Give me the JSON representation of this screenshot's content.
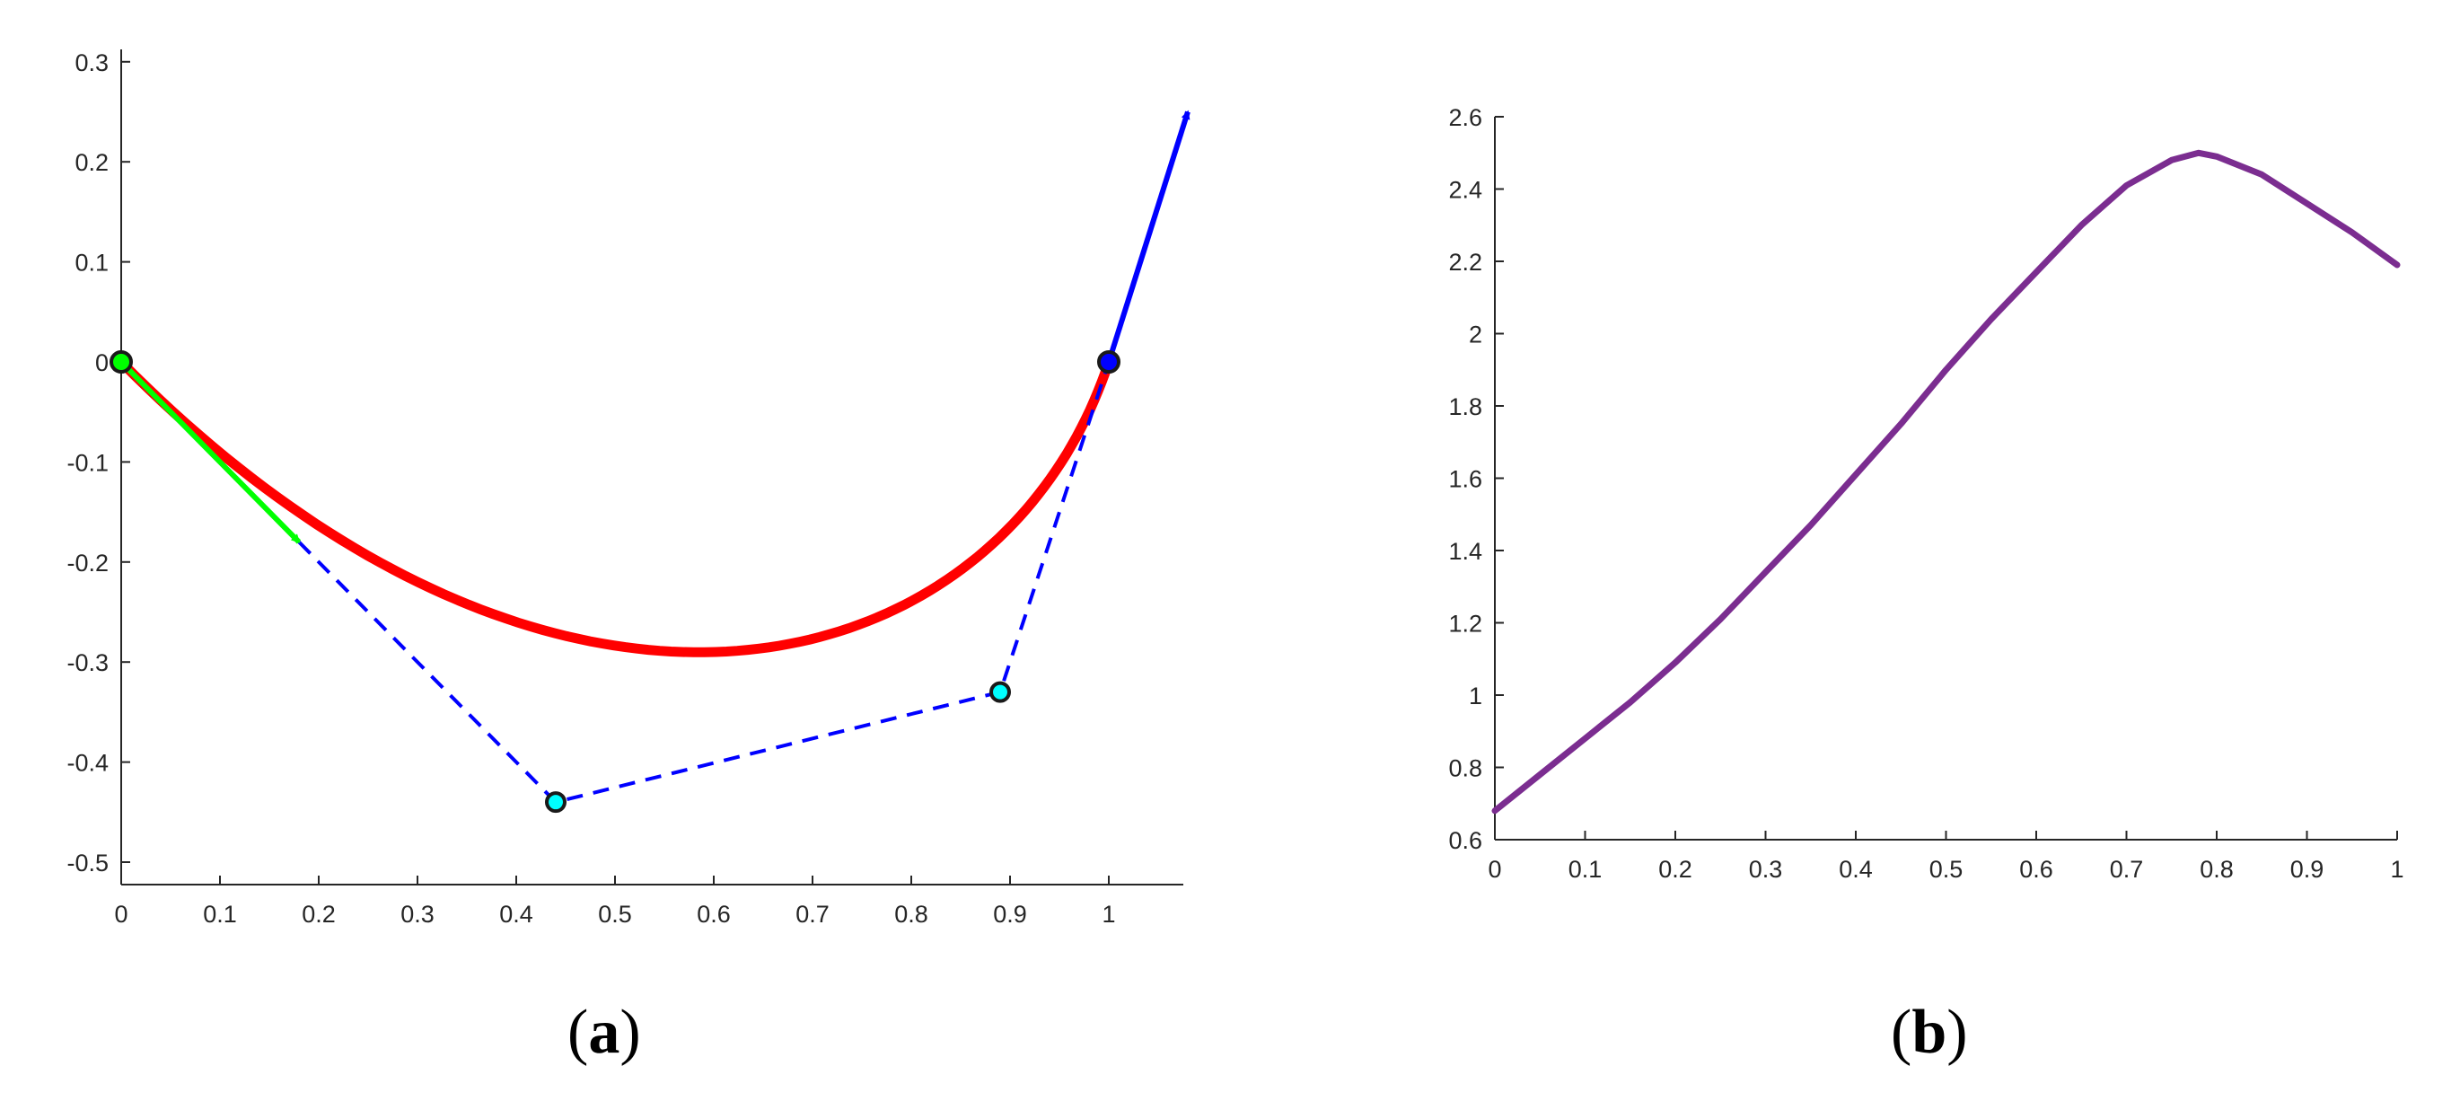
{
  "panels": [
    {
      "label_open": "(",
      "label_letter": "a",
      "label_close": ")"
    },
    {
      "label_open": "(",
      "label_letter": "b",
      "label_close": ")"
    }
  ],
  "chart_data": [
    {
      "type": "line",
      "title": "",
      "xlabel": "",
      "ylabel": "",
      "xlim": [
        0,
        1.08
      ],
      "ylim": [
        -0.52,
        0.32
      ],
      "xticks": [
        0,
        0.1,
        0.2,
        0.3,
        0.4,
        0.5,
        0.6,
        0.7,
        0.8,
        0.9,
        1
      ],
      "yticks": [
        0.3,
        0.2,
        0.1,
        0,
        -0.1,
        -0.2,
        -0.3,
        -0.4,
        -0.5
      ],
      "xtick_labels": [
        "0",
        "0.1",
        "0.2",
        "0.3",
        "0.4",
        "0.5",
        "0.6",
        "0.7",
        "0.8",
        "0.9",
        "1"
      ],
      "ytick_labels": [
        "0.3",
        "0.2",
        "0.1",
        "0",
        "-0.1",
        "-0.2",
        "-0.3",
        "-0.4",
        "-0.5"
      ],
      "grid": false,
      "series": [
        {
          "kind": "bezier-curve",
          "color": "#ff0000",
          "control_points": [
            [
              0,
              0
            ],
            [
              0.44,
              -0.44
            ],
            [
              0.89,
              -0.33
            ],
            [
              1,
              0
            ]
          ]
        },
        {
          "kind": "control-polygon",
          "color": "#0000ff",
          "dashed": true,
          "points": [
            [
              0.18,
              -0.18
            ],
            [
              0.44,
              -0.44
            ],
            [
              0.89,
              -0.33
            ],
            [
              1,
              0
            ]
          ]
        },
        {
          "kind": "tangent-arrow",
          "color": "#00ff00",
          "from": [
            0,
            0
          ],
          "to": [
            0.18,
            -0.18
          ]
        },
        {
          "kind": "tangent-arrow",
          "color": "#0000ff",
          "from": [
            1,
            0
          ],
          "to": [
            1.08,
            0.25
          ]
        },
        {
          "kind": "endpoint",
          "color": "#00ff00",
          "x": 0,
          "y": 0
        },
        {
          "kind": "endpoint",
          "color": "#0000ff",
          "x": 1,
          "y": 0
        },
        {
          "kind": "control-point",
          "color": "#00ffff",
          "x": 0.44,
          "y": -0.44
        },
        {
          "kind": "control-point",
          "color": "#00ffff",
          "x": 0.89,
          "y": -0.33
        }
      ]
    },
    {
      "type": "line",
      "title": "",
      "xlabel": "",
      "ylabel": "",
      "xlim": [
        0,
        1
      ],
      "ylim": [
        0.6,
        2.6
      ],
      "xticks": [
        0,
        0.1,
        0.2,
        0.3,
        0.4,
        0.5,
        0.6,
        0.7,
        0.8,
        0.9,
        1
      ],
      "yticks": [
        0.6,
        0.8,
        1,
        1.2,
        1.4,
        1.6,
        1.8,
        2,
        2.2,
        2.4,
        2.6
      ],
      "xtick_labels": [
        "0",
        "0.1",
        "0.2",
        "0.3",
        "0.4",
        "0.5",
        "0.6",
        "0.7",
        "0.8",
        "0.9",
        "1"
      ],
      "ytick_labels": [
        "0.6",
        "0.8",
        "1",
        "1.2",
        "1.4",
        "1.6",
        "1.8",
        "2",
        "2.2",
        "2.4",
        "2.6"
      ],
      "grid": false,
      "series": [
        {
          "kind": "curve",
          "color": "#7b2d90",
          "x": [
            0,
            0.05,
            0.1,
            0.15,
            0.2,
            0.25,
            0.3,
            0.35,
            0.4,
            0.45,
            0.5,
            0.55,
            0.6,
            0.65,
            0.7,
            0.75,
            0.78,
            0.8,
            0.85,
            0.9,
            0.95,
            1
          ],
          "y": [
            0.68,
            0.78,
            0.88,
            0.98,
            1.09,
            1.21,
            1.34,
            1.47,
            1.61,
            1.75,
            1.9,
            2.04,
            2.17,
            2.3,
            2.41,
            2.48,
            2.5,
            2.49,
            2.44,
            2.36,
            2.28,
            2.19
          ]
        }
      ]
    }
  ]
}
